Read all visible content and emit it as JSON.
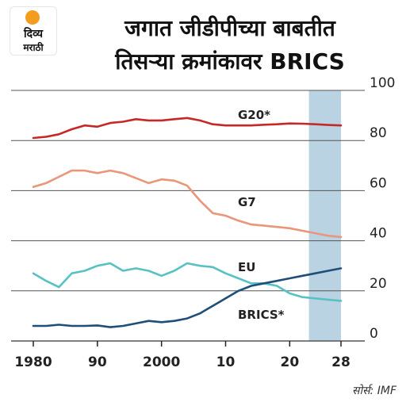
{
  "logo": {
    "line1": "दिव्य",
    "line2": "मराठी"
  },
  "title_lines": [
    "जगात जीडीपीच्या बाबतीत",
    "तिसऱ्या क्रमांकावर BRICS"
  ],
  "source": "सोर्स: IMF",
  "colors": {
    "g20": "#c62828",
    "g7": "#e9967a",
    "eu": "#59c1c3",
    "brics": "#1f4e79",
    "projection": "#b9d3e2",
    "grid": "#555555"
  },
  "chart_data": {
    "type": "line",
    "x_tick_labels": [
      "1980",
      "90",
      "2000",
      "10",
      "20",
      "28"
    ],
    "x_ticks": [
      1980,
      1990,
      2000,
      2010,
      2020,
      2028
    ],
    "y_ticks": [
      0,
      20,
      40,
      60,
      80,
      100
    ],
    "xlim": [
      1980,
      2028
    ],
    "ylim": [
      0,
      100
    ],
    "projection_range": [
      2023,
      2028
    ],
    "grid": true,
    "series": [
      {
        "name": "G20*",
        "color": "#c62828",
        "x": [
          1980,
          1982,
          1984,
          1986,
          1988,
          1990,
          1992,
          1994,
          1996,
          1998,
          2000,
          2002,
          2004,
          2006,
          2008,
          2010,
          2012,
          2014,
          2016,
          2018,
          2020,
          2022,
          2024,
          2026,
          2028
        ],
        "y": [
          81,
          81.5,
          82.5,
          84.5,
          86,
          85.5,
          87,
          87.5,
          88.5,
          88,
          88,
          88.5,
          89,
          88,
          86.5,
          86,
          86,
          86,
          86.3,
          86.5,
          86.8,
          86.7,
          86.5,
          86.2,
          86
        ]
      },
      {
        "name": "G7",
        "color": "#e9967a",
        "x": [
          1980,
          1982,
          1984,
          1986,
          1988,
          1990,
          1992,
          1994,
          1996,
          1998,
          2000,
          2002,
          2004,
          2006,
          2008,
          2010,
          2012,
          2014,
          2016,
          2018,
          2020,
          2022,
          2024,
          2026,
          2028
        ],
        "y": [
          61.5,
          63,
          65.5,
          68,
          68,
          67,
          68,
          67,
          65,
          63,
          64.5,
          64,
          62,
          56,
          51,
          50,
          48,
          46.5,
          46,
          45.5,
          45,
          44,
          43,
          42,
          41.5
        ]
      },
      {
        "name": "EU",
        "color": "#59c1c3",
        "x": [
          1980,
          1982,
          1984,
          1986,
          1988,
          1990,
          1992,
          1994,
          1996,
          1998,
          2000,
          2002,
          2004,
          2006,
          2008,
          2010,
          2012,
          2014,
          2016,
          2018,
          2020,
          2022,
          2024,
          2026,
          2028
        ],
        "y": [
          27,
          24,
          21.5,
          27,
          28,
          30,
          31,
          28,
          29,
          28,
          26,
          28,
          31,
          30,
          29.5,
          27,
          25,
          23,
          23,
          22,
          19,
          17.5,
          17,
          16.5,
          16
        ]
      },
      {
        "name": "BRICS*",
        "color": "#1f4e79",
        "x": [
          1980,
          1982,
          1984,
          1986,
          1988,
          1990,
          1992,
          1994,
          1996,
          1998,
          2000,
          2002,
          2004,
          2006,
          2008,
          2010,
          2012,
          2014,
          2016,
          2018,
          2020,
          2022,
          2024,
          2026,
          2028
        ],
        "y": [
          6,
          6,
          6.5,
          6,
          6,
          6.2,
          5.5,
          6,
          7,
          8,
          7.5,
          8,
          9,
          11,
          14,
          17,
          20,
          22,
          23,
          24,
          25,
          26,
          27,
          28,
          29
        ]
      }
    ]
  }
}
